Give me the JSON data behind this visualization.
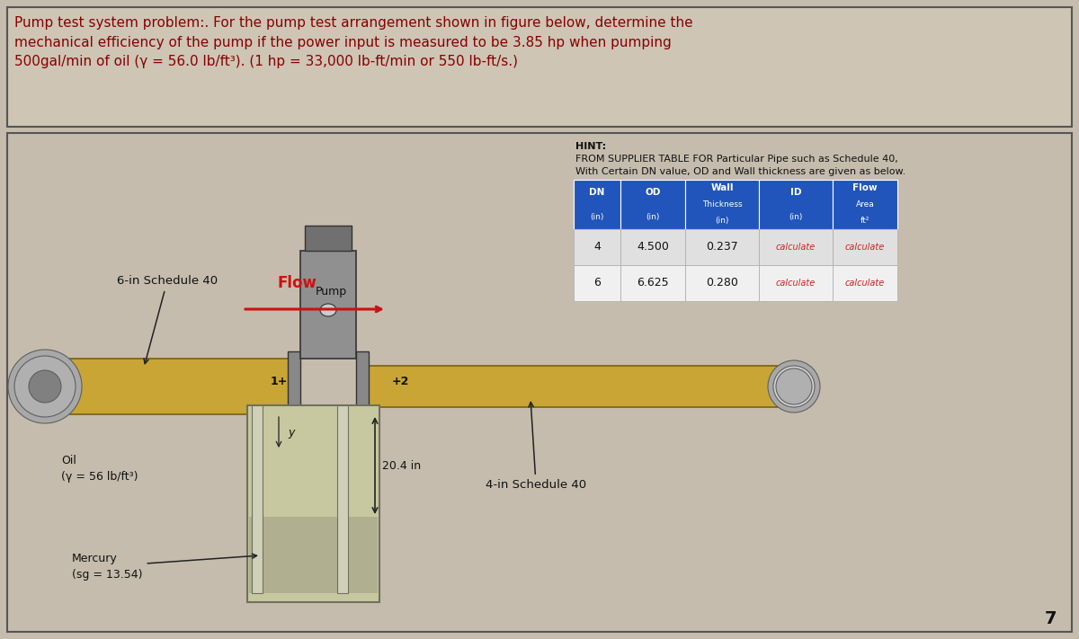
{
  "title_text": "Pump test system problem:. For the pump test arrangement shown in figure below, determine the\nmechanical efficiency of the pump if the power input is measured to be 3.85 hp when pumping\n500gal/min of oil (γ = 56.0 lb/ft³). (1 hp = 33,000 lb-ft/min or 550 lb-ft/s.)",
  "hint_line1": "HINT:",
  "hint_line2": "FROM SUPPLIER TABLE FOR Particular Pipe such as Schedule 40,",
  "hint_line3": "With Certain DN value, OD and Wall thickness are given as below.",
  "table_headers": [
    "DN",
    "OD",
    "Wall\nThickness",
    "ID",
    "Flow\nArea"
  ],
  "table_subheaders": [
    "(in)",
    "(in)",
    "(in)",
    "(in)",
    "ft²"
  ],
  "table_row1": [
    "4",
    "4.500",
    "0.237",
    "calculate",
    "calculate"
  ],
  "table_row2": [
    "6",
    "6.625",
    "0.280",
    "calculate",
    "calculate"
  ],
  "flow_label": "Flow",
  "pump_label": "Pump",
  "label_6in": "6-in Schedule 40",
  "label_4in": "4-in Schedule 40",
  "oil_label": "Oil\n(γ = 56 lb/ft³)",
  "mercury_label": "Mercury\n(sg = 13.54)",
  "measurement_label": "20.4 in",
  "point1_label": "1+",
  "point2_label": "+2",
  "y_label": "y",
  "page_number": "7",
  "bg_color": "#c5bcad",
  "title_bg": "#cec5b5",
  "pipe_fill": "#c8a535",
  "pipe_edge": "#7a6010",
  "manometer_fill": "#c8c8a0",
  "manometer_edge": "#707060",
  "mercury_fill": "#b0b090",
  "pump_body": "#909090",
  "pump_cap": "#707070",
  "pump_dark": "#505050",
  "header_blue": "#2255bb",
  "row1_bg": "#e0e0e0",
  "row2_bg": "#f0f0f0",
  "calc_red": "#cc2222",
  "title_red": "#880000",
  "flow_red": "#cc1111",
  "dark_gray": "#606060",
  "silver_pipe": "#a8a8a8",
  "silver_dark": "#606060"
}
